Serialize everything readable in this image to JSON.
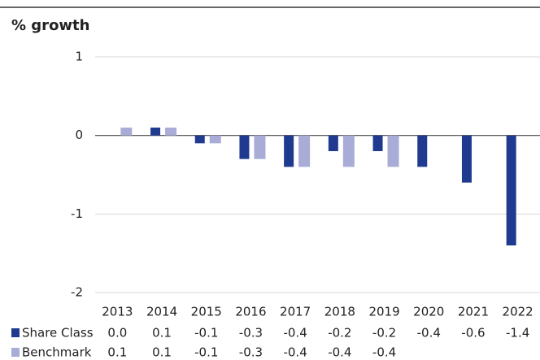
{
  "chart_data": {
    "type": "bar",
    "title": "% growth",
    "categories": [
      "2013",
      "2014",
      "2015",
      "2016",
      "2017",
      "2018",
      "2019",
      "2020",
      "2021",
      "2022"
    ],
    "series": [
      {
        "name": "Share Class",
        "color": "#1f3a8f",
        "values": [
          0.0,
          0.1,
          -0.1,
          -0.3,
          -0.4,
          -0.2,
          -0.2,
          -0.4,
          -0.6,
          -1.4
        ],
        "value_labels": [
          "0.0",
          "0.1",
          "-0.1",
          "-0.3",
          "-0.4",
          "-0.2",
          "-0.2",
          "-0.4",
          "-0.6",
          "-1.4"
        ]
      },
      {
        "name": "Benchmark",
        "color": "#a9acd6",
        "values": [
          0.1,
          0.1,
          -0.1,
          -0.3,
          -0.4,
          -0.4,
          -0.4,
          null,
          null,
          null
        ],
        "value_labels": [
          "0.1",
          "0.1",
          "-0.1",
          "-0.3",
          "-0.4",
          "-0.4",
          "-0.4",
          null,
          null,
          null
        ]
      }
    ],
    "ylim": [
      -2,
      1
    ],
    "yticks": [
      -2,
      -1,
      0,
      1
    ],
    "grid": true
  }
}
